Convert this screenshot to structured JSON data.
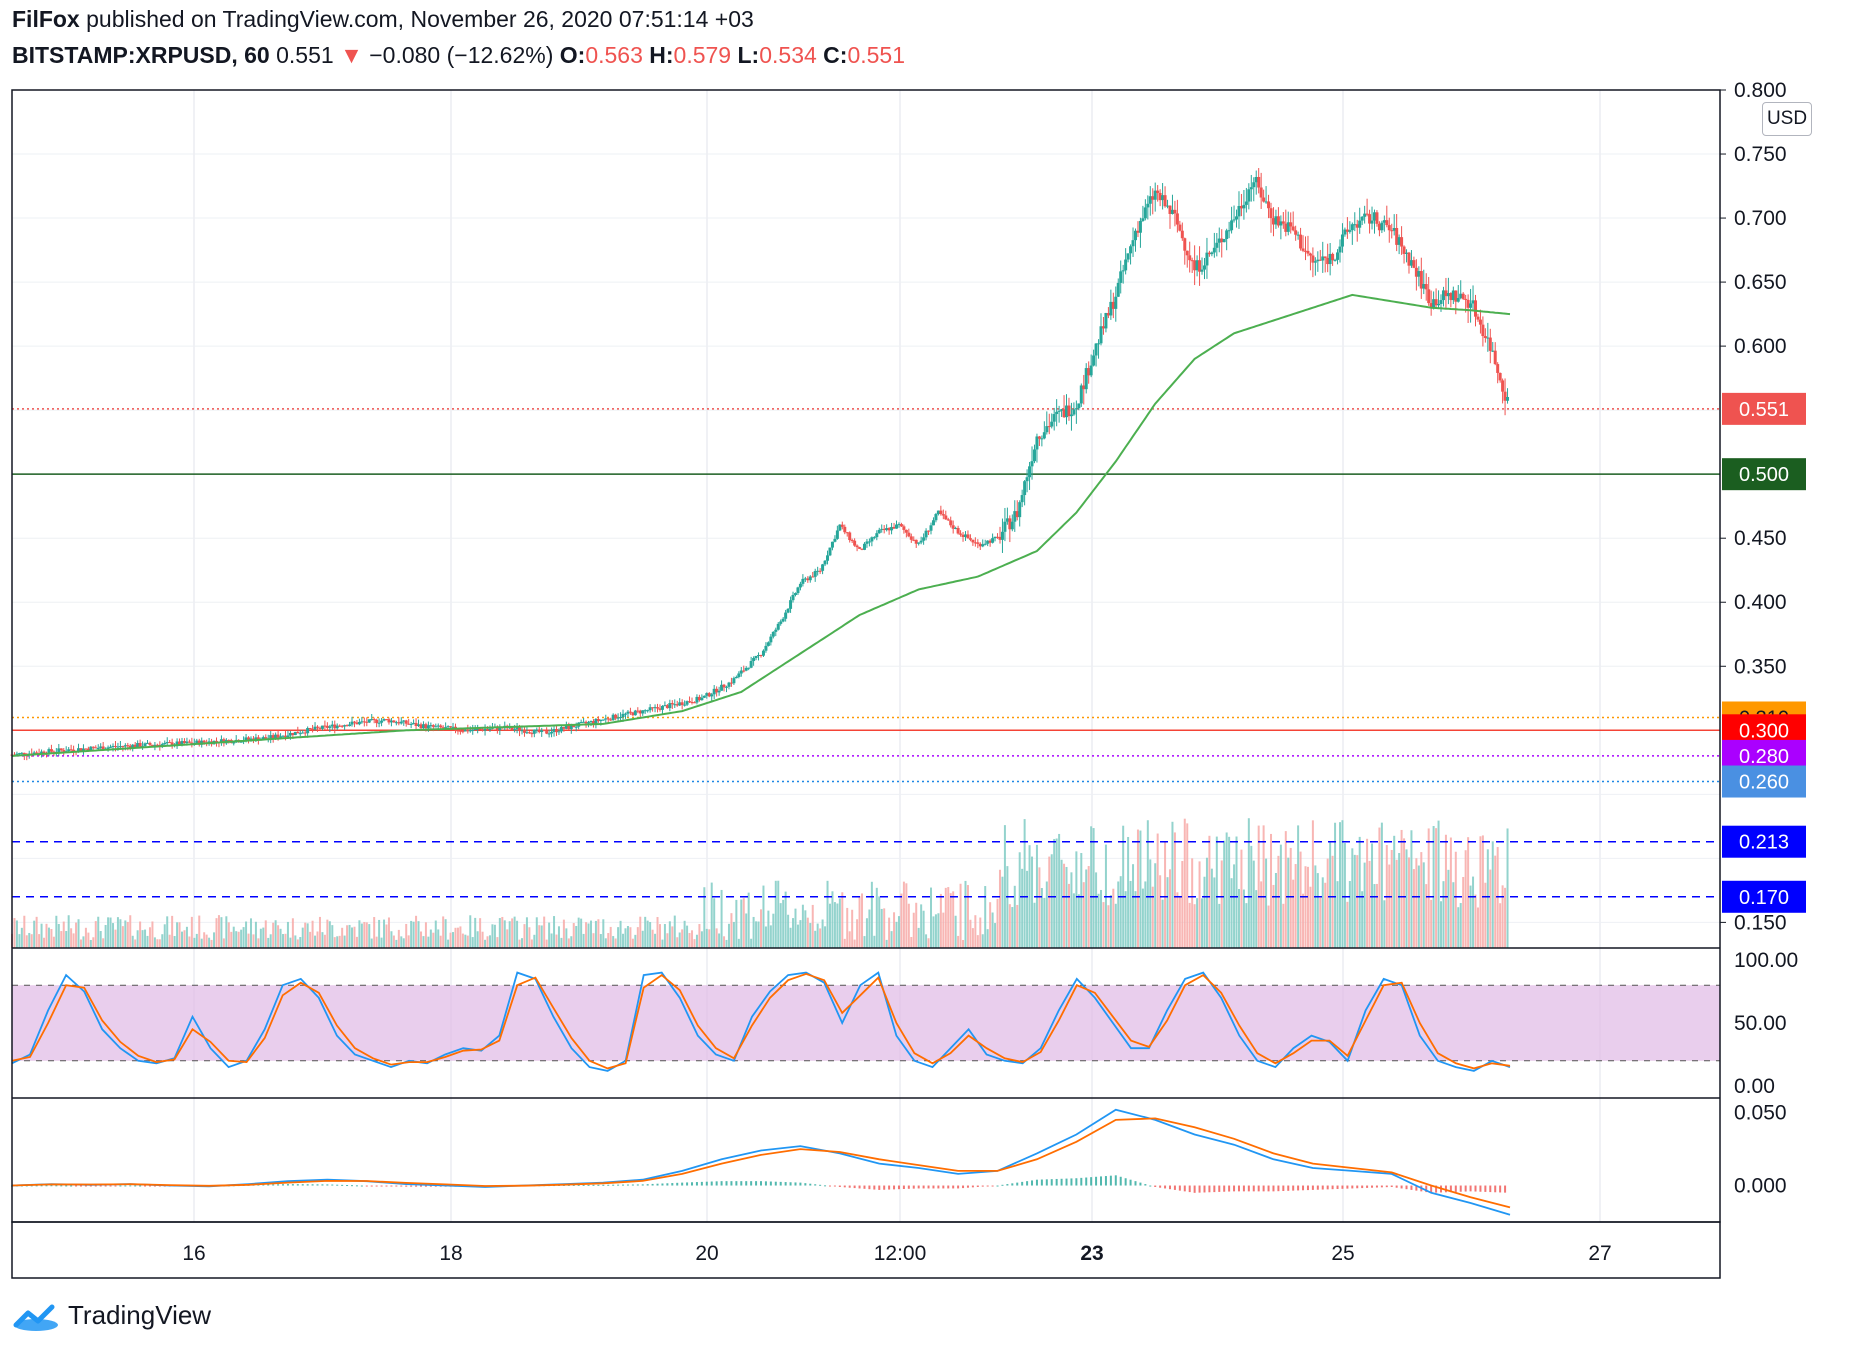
{
  "header": {
    "publisher": "FilFox",
    "published_text": "published on TradingView.com, November 26, 2020 07:51:14 +03",
    "symbol": "BITSTAMP:XRPUSD, 60",
    "last": "0.551",
    "change_arrow": "▼",
    "change": "−0.080 (−12.62%)",
    "o_label": "O:",
    "o": "0.563",
    "h_label": "H:",
    "h": "0.579",
    "l_label": "L:",
    "l": "0.534",
    "c_label": "C:",
    "c": "0.551"
  },
  "currency_label": "USD",
  "brand": "TradingView",
  "colors": {
    "up": "#26a69a",
    "down": "#ef5350",
    "ma": "#4caf50",
    "macd": "#2196f3",
    "signal": "#ff6d00",
    "stoch_band": "#e1bee7"
  },
  "chart_data": [
    {
      "type": "candlestick",
      "symbol": "BITSTAMP:XRPUSD",
      "interval": "60",
      "y_range": [
        0.13,
        0.8
      ],
      "y_ticks": [
        "0.150",
        "0.350",
        "0.400",
        "0.450",
        "0.600",
        "0.650",
        "0.700",
        "0.750",
        "0.800"
      ],
      "x_ticks": [
        "16",
        "18",
        "20",
        "12:00",
        "23",
        "25",
        "27"
      ],
      "price_path": [
        [
          0,
          0.281
        ],
        [
          6,
          0.285
        ],
        [
          12,
          0.288
        ],
        [
          18,
          0.29
        ],
        [
          22,
          0.292
        ],
        [
          26,
          0.294
        ],
        [
          30,
          0.3
        ],
        [
          34,
          0.305
        ],
        [
          38,
          0.308
        ],
        [
          42,
          0.303
        ],
        [
          46,
          0.3
        ],
        [
          50,
          0.302
        ],
        [
          54,
          0.298
        ],
        [
          58,
          0.305
        ],
        [
          62,
          0.312
        ],
        [
          66,
          0.318
        ],
        [
          70,
          0.325
        ],
        [
          73,
          0.338
        ],
        [
          76,
          0.36
        ],
        [
          78,
          0.385
        ],
        [
          80,
          0.415
        ],
        [
          82,
          0.425
        ],
        [
          84,
          0.46
        ],
        [
          86,
          0.44
        ],
        [
          88,
          0.455
        ],
        [
          90,
          0.46
        ],
        [
          92,
          0.445
        ],
        [
          94,
          0.47
        ],
        [
          96,
          0.455
        ],
        [
          98,
          0.445
        ],
        [
          100,
          0.45
        ],
        [
          102,
          0.47
        ],
        [
          104,
          0.53
        ],
        [
          106,
          0.545
        ],
        [
          108,
          0.555
        ],
        [
          110,
          0.6
        ],
        [
          112,
          0.64
        ],
        [
          114,
          0.69
        ],
        [
          116,
          0.72
        ],
        [
          118,
          0.7
        ],
        [
          120,
          0.66
        ],
        [
          122,
          0.675
        ],
        [
          124,
          0.7
        ],
        [
          126,
          0.73
        ],
        [
          128,
          0.7
        ],
        [
          130,
          0.69
        ],
        [
          132,
          0.665
        ],
        [
          134,
          0.67
        ],
        [
          136,
          0.695
        ],
        [
          138,
          0.7
        ],
        [
          140,
          0.69
        ],
        [
          142,
          0.665
        ],
        [
          144,
          0.635
        ],
        [
          146,
          0.64
        ],
        [
          148,
          0.635
        ],
        [
          150,
          0.6
        ],
        [
          152,
          0.551
        ]
      ],
      "ma_path": [
        [
          0,
          0.28
        ],
        [
          20,
          0.29
        ],
        [
          40,
          0.3
        ],
        [
          60,
          0.305
        ],
        [
          68,
          0.315
        ],
        [
          74,
          0.33
        ],
        [
          80,
          0.36
        ],
        [
          86,
          0.39
        ],
        [
          92,
          0.41
        ],
        [
          98,
          0.42
        ],
        [
          104,
          0.44
        ],
        [
          108,
          0.47
        ],
        [
          112,
          0.51
        ],
        [
          116,
          0.555
        ],
        [
          120,
          0.59
        ],
        [
          124,
          0.61
        ],
        [
          128,
          0.62
        ],
        [
          132,
          0.63
        ],
        [
          136,
          0.64
        ],
        [
          140,
          0.635
        ],
        [
          144,
          0.63
        ],
        [
          148,
          0.628
        ],
        [
          152,
          0.625
        ]
      ],
      "levels": [
        {
          "label": "0.310",
          "value": 0.31,
          "color": "#ff9800",
          "style": "dotted"
        },
        {
          "label": "0.300",
          "value": 0.3,
          "color": "#f44336",
          "style": "solid"
        },
        {
          "label": "0.280",
          "value": 0.28,
          "color": "#aa00ff",
          "style": "dotted"
        },
        {
          "label": "0.260",
          "value": 0.26,
          "color": "#1e88e5",
          "style": "dotted"
        },
        {
          "label": "0.213",
          "value": 0.213,
          "color": "#0000ff",
          "style": "dashed"
        },
        {
          "label": "0.170",
          "value": 0.17,
          "color": "#0000ff",
          "style": "dashed"
        },
        {
          "label": "0.500",
          "value": 0.5,
          "color": "#1b5e20",
          "style": "solid"
        },
        {
          "label": "0.551",
          "value": 0.551,
          "color": "#ef5350",
          "style": "dotted"
        }
      ]
    },
    {
      "type": "line",
      "name": "stochastic",
      "y_range": [
        0,
        100
      ],
      "y_ticks": [
        "100.00",
        "50.00",
        "0.00"
      ],
      "band": [
        20,
        80
      ],
      "k": [
        18,
        25,
        60,
        88,
        75,
        45,
        30,
        20,
        18,
        22,
        55,
        30,
        15,
        20,
        45,
        80,
        85,
        70,
        40,
        25,
        20,
        15,
        20,
        18,
        25,
        30,
        28,
        40,
        90,
        85,
        55,
        30,
        15,
        12,
        20,
        88,
        90,
        70,
        40,
        25,
        20,
        55,
        75,
        88,
        90,
        82,
        50,
        80,
        90,
        40,
        20,
        15,
        30,
        45,
        25,
        20,
        18,
        30,
        60,
        85,
        70,
        50,
        30,
        30,
        60,
        85,
        90,
        70,
        40,
        20,
        15,
        30,
        40,
        35,
        20,
        60,
        85,
        80,
        40,
        20,
        15,
        12,
        20,
        15
      ],
      "d": [
        20,
        23,
        50,
        80,
        78,
        52,
        35,
        24,
        19,
        21,
        45,
        35,
        20,
        19,
        38,
        72,
        82,
        74,
        48,
        30,
        22,
        17,
        19,
        19,
        23,
        28,
        29,
        36,
        80,
        86,
        62,
        38,
        20,
        14,
        18,
        78,
        88,
        76,
        48,
        30,
        22,
        48,
        70,
        84,
        89,
        84,
        58,
        72,
        86,
        50,
        26,
        18,
        26,
        40,
        30,
        22,
        19,
        27,
        52,
        80,
        74,
        55,
        36,
        31,
        52,
        80,
        88,
        74,
        48,
        26,
        18,
        26,
        36,
        36,
        24,
        52,
        80,
        82,
        50,
        26,
        18,
        14,
        18,
        16
      ]
    },
    {
      "type": "line",
      "name": "macd",
      "y_range": [
        -0.025,
        0.06
      ],
      "y_ticks": [
        "0.050",
        "0.000"
      ],
      "macd": [
        0,
        0.001,
        0.0005,
        0.001,
        0,
        -0.0005,
        0.001,
        0.003,
        0.004,
        0.003,
        0.001,
        0,
        -0.001,
        0,
        0.001,
        0.002,
        0.004,
        0.01,
        0.018,
        0.024,
        0.027,
        0.022,
        0.015,
        0.012,
        0.008,
        0.01,
        0.022,
        0.035,
        0.052,
        0.045,
        0.035,
        0.028,
        0.018,
        0.012,
        0.01,
        0.008,
        -0.005,
        -0.012,
        -0.02
      ],
      "signal": [
        0,
        0.0008,
        0.0007,
        0.0009,
        0.0003,
        -0.0002,
        0.0005,
        0.002,
        0.0032,
        0.0031,
        0.0018,
        0.0008,
        -0.0003,
        -0.0001,
        0.0006,
        0.0015,
        0.0032,
        0.008,
        0.015,
        0.021,
        0.025,
        0.023,
        0.018,
        0.014,
        0.01,
        0.01,
        0.018,
        0.03,
        0.045,
        0.046,
        0.04,
        0.032,
        0.022,
        0.015,
        0.012,
        0.009,
        0,
        -0.008,
        -0.015
      ]
    }
  ]
}
